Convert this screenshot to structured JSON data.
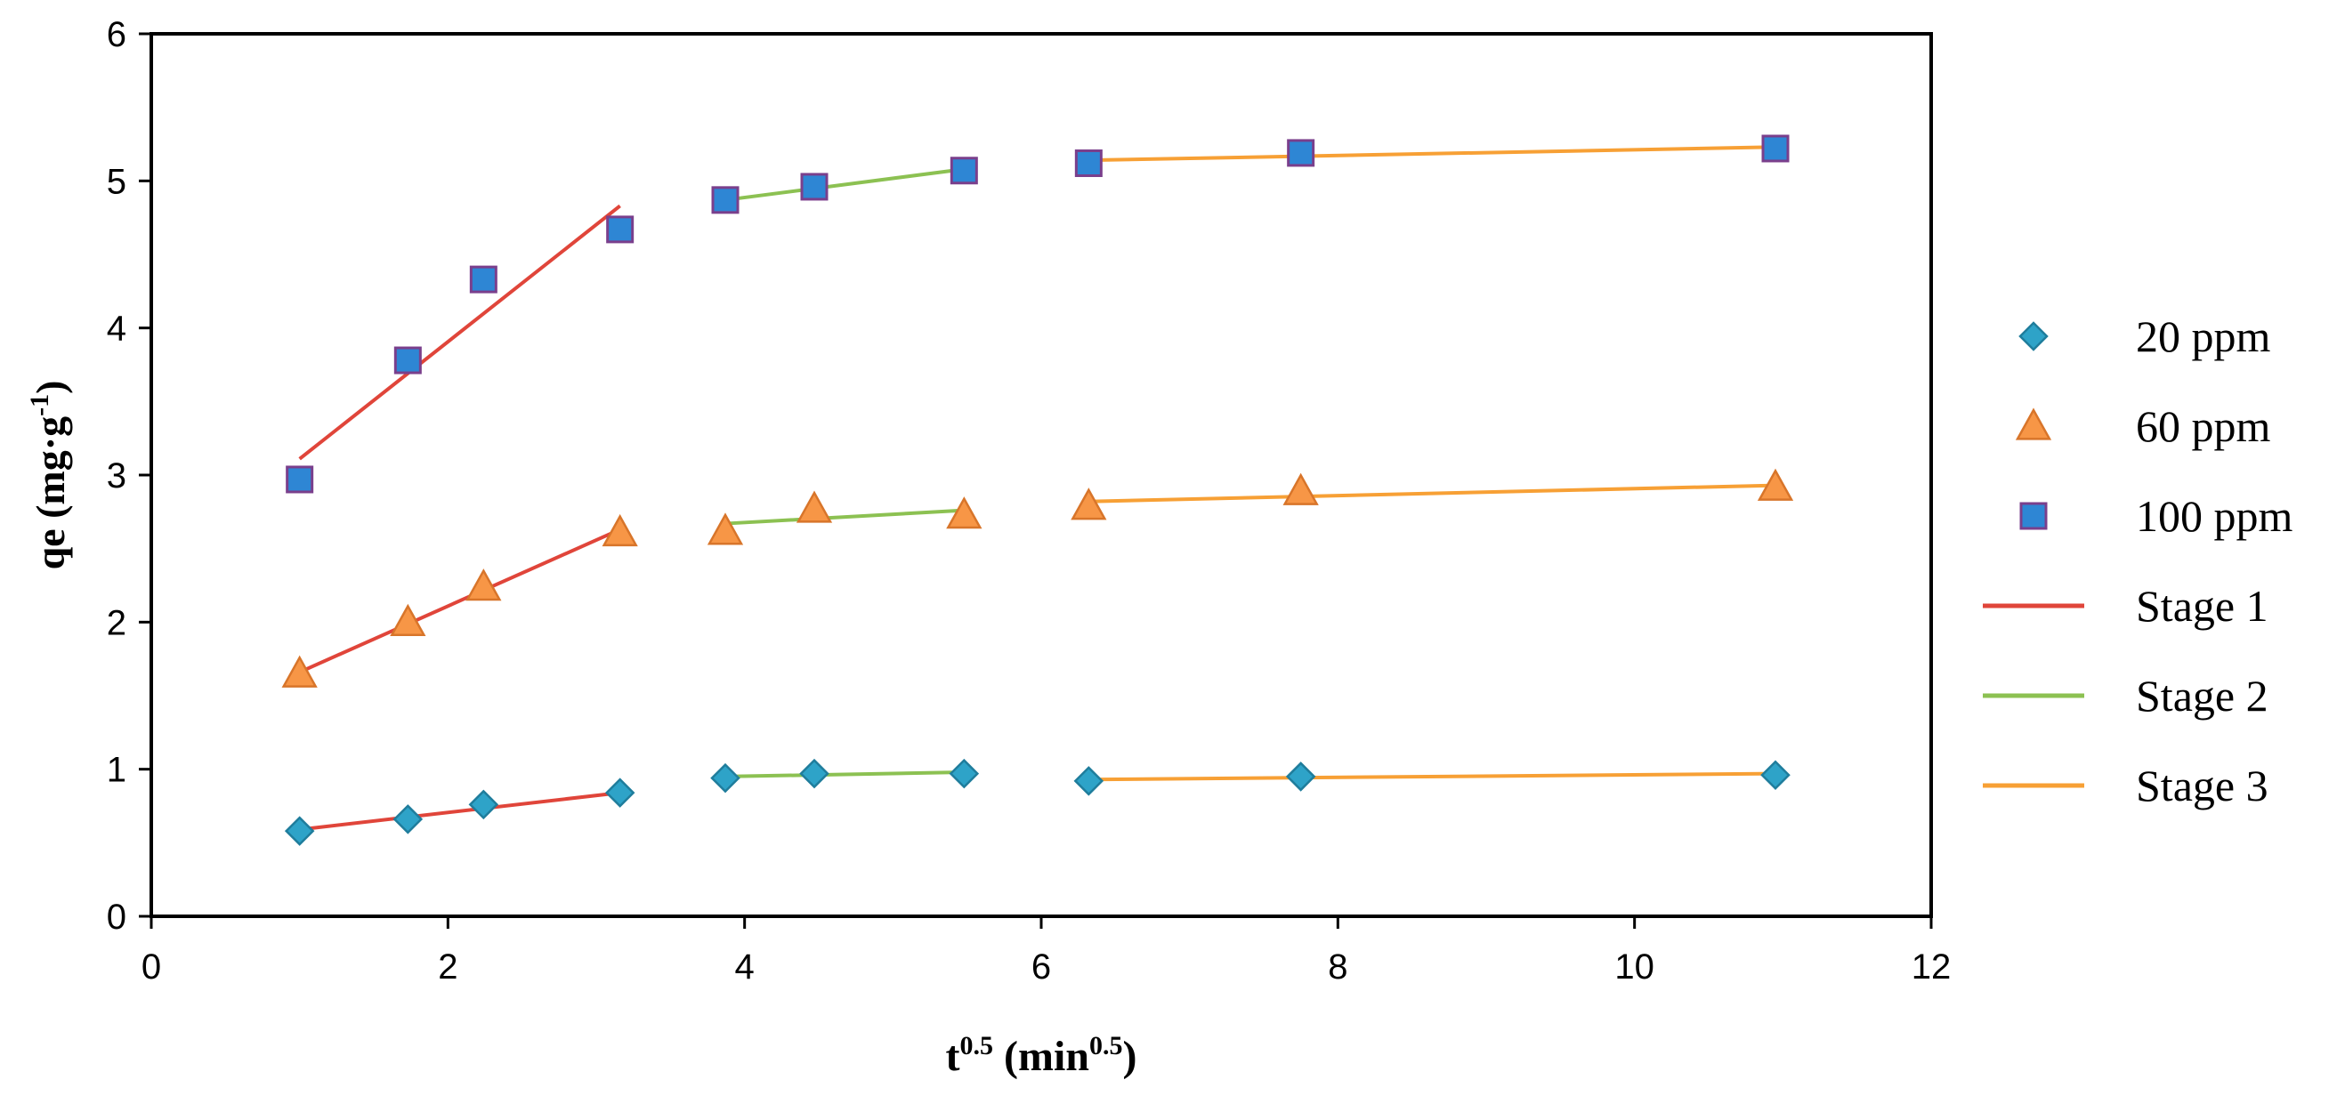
{
  "chart_data": {
    "type": "scatter",
    "title": "",
    "xlabel": {
      "base": "t",
      "sup": "0.5",
      "unit": " (min",
      "unit_sup": "0.5",
      "close": ")"
    },
    "ylabel": {
      "base": "qe (mg·g",
      "sup": "-1",
      "close": ")"
    },
    "xlim": [
      0,
      12
    ],
    "ylim": [
      0,
      6
    ],
    "x_ticks": [
      0,
      2,
      4,
      6,
      8,
      10,
      12
    ],
    "y_ticks": [
      0,
      1,
      2,
      3,
      4,
      5,
      6
    ],
    "x_tick_labels": [
      "0",
      "2",
      "4",
      "6",
      "8",
      "10",
      "12"
    ],
    "y_tick_labels": [
      "0",
      "1",
      "2",
      "3",
      "4",
      "5",
      "6"
    ],
    "grid": false,
    "legend_position": "right",
    "x": [
      1,
      1.73,
      2.24,
      3.16,
      3.87,
      4.47,
      5.48,
      6.32,
      7.75,
      10.95
    ],
    "series": [
      {
        "name": "20 ppm",
        "marker": "diamond",
        "color": "#2EA3C8",
        "edge": "#1F7D9C",
        "values": [
          0.58,
          0.66,
          0.76,
          0.84,
          0.94,
          0.97,
          0.97,
          0.92,
          0.95,
          0.96
        ]
      },
      {
        "name": "60 ppm",
        "marker": "triangle",
        "color": "#F79646",
        "edge": "#D8752A",
        "values": [
          1.65,
          2.0,
          2.24,
          2.61,
          2.62,
          2.77,
          2.73,
          2.79,
          2.89,
          2.92
        ]
      },
      {
        "name": "100 ppm",
        "marker": "square",
        "color": "#2E86D4",
        "edge": "#7A3F8C",
        "values": [
          2.97,
          3.78,
          4.33,
          4.67,
          4.87,
          4.96,
          5.07,
          5.12,
          5.19,
          5.22
        ]
      }
    ],
    "fit_lines": [
      {
        "name": "Stage 1",
        "color": "#E0453A",
        "segments": [
          {
            "x": [
              1,
              3.16
            ],
            "y": [
              0.59,
              0.84
            ]
          },
          {
            "x": [
              1,
              3.16
            ],
            "y": [
              1.66,
              2.63
            ]
          },
          {
            "x": [
              1,
              3.16
            ],
            "y": [
              3.11,
              4.83
            ]
          }
        ]
      },
      {
        "name": "Stage 2",
        "color": "#8CC152",
        "segments": [
          {
            "x": [
              3.87,
              5.48
            ],
            "y": [
              0.95,
              0.98
            ]
          },
          {
            "x": [
              3.87,
              5.48
            ],
            "y": [
              2.67,
              2.76
            ]
          },
          {
            "x": [
              3.87,
              5.48
            ],
            "y": [
              4.87,
              5.08
            ]
          }
        ]
      },
      {
        "name": "Stage 3",
        "color": "#F7A035",
        "segments": [
          {
            "x": [
              6.32,
              10.95
            ],
            "y": [
              0.93,
              0.97
            ]
          },
          {
            "x": [
              6.32,
              10.95
            ],
            "y": [
              2.82,
              2.93
            ]
          },
          {
            "x": [
              6.32,
              10.95
            ],
            "y": [
              5.14,
              5.23
            ]
          }
        ]
      }
    ]
  }
}
